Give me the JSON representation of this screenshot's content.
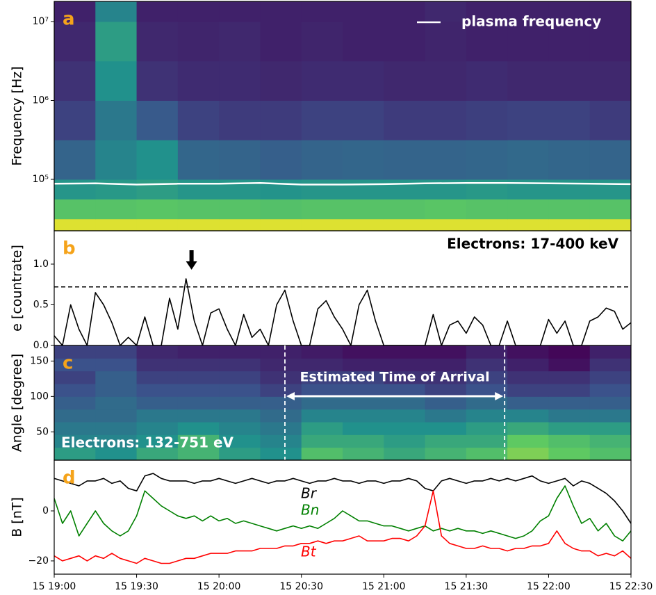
{
  "chart_data": [
    {
      "type": "heatmap",
      "panel_label": "a",
      "ylabel": "Frequency [Hz]",
      "ylog": true,
      "colormap": "viridis",
      "xlim": [
        "15 19:00",
        "15 22:30"
      ],
      "ylim": [
        22300,
        18000000
      ],
      "yticks": [
        {
          "value": 100000,
          "label": "10⁵"
        },
        {
          "value": 1000000,
          "label": "10⁶"
        },
        {
          "value": 10000000,
          "label": "10⁷"
        }
      ],
      "xbins": [
        "15 19:00",
        "15 19:15",
        "15 19:30",
        "15 19:45",
        "15 20:00",
        "15 20:15",
        "15 20:30",
        "15 20:45",
        "15 21:00",
        "15 21:15",
        "15 21:30",
        "15 21:45",
        "15 22:00",
        "15 22:15",
        "15 22:30"
      ],
      "ybins": [
        22300,
        31600,
        56200,
        100000,
        316000,
        1000000,
        3160000,
        10000000,
        18000000
      ],
      "values": [
        [
          0.95,
          0.95,
          0.95,
          0.95,
          0.95,
          0.95,
          0.95,
          0.95,
          0.95,
          0.95,
          0.95,
          0.95,
          0.95,
          0.95
        ],
        [
          0.72,
          0.72,
          0.73,
          0.72,
          0.72,
          0.71,
          0.72,
          0.72,
          0.72,
          0.73,
          0.72,
          0.72,
          0.72,
          0.72
        ],
        [
          0.52,
          0.53,
          0.55,
          0.52,
          0.52,
          0.51,
          0.52,
          0.52,
          0.52,
          0.52,
          0.53,
          0.52,
          0.52,
          0.52
        ],
        [
          0.32,
          0.45,
          0.5,
          0.33,
          0.32,
          0.3,
          0.32,
          0.33,
          0.32,
          0.32,
          0.33,
          0.34,
          0.33,
          0.32
        ],
        [
          0.2,
          0.4,
          0.28,
          0.2,
          0.18,
          0.18,
          0.2,
          0.2,
          0.18,
          0.18,
          0.19,
          0.2,
          0.2,
          0.18
        ],
        [
          0.15,
          0.5,
          0.15,
          0.13,
          0.13,
          0.12,
          0.13,
          0.13,
          0.12,
          0.12,
          0.13,
          0.12,
          0.12,
          0.12
        ],
        [
          0.12,
          0.55,
          0.12,
          0.11,
          0.12,
          0.1,
          0.11,
          0.1,
          0.1,
          0.11,
          0.1,
          0.1,
          0.1,
          0.1
        ],
        [
          0.1,
          0.45,
          0.1,
          0.1,
          0.1,
          0.1,
          0.1,
          0.1,
          0.1,
          0.12,
          0.1,
          0.1,
          0.1,
          0.1
        ]
      ],
      "x": [
        "15 19:00",
        "15 19:15",
        "15 19:30",
        "15 19:45",
        "15 20:00",
        "15 20:15",
        "15 20:30",
        "15 20:45",
        "15 21:00",
        "15 21:15",
        "15 21:30",
        "15 21:45",
        "15 22:00",
        "15 22:15",
        "15 22:30"
      ],
      "series": [
        {
          "name": "plasma frequency",
          "color": "#ffffff",
          "values": [
            88000,
            89000,
            86000,
            88000,
            88000,
            90000,
            86000,
            86000,
            87000,
            89000,
            90000,
            90000,
            89000,
            88000,
            87000
          ]
        }
      ]
    },
    {
      "type": "line",
      "panel_label": "b",
      "ylabel": "e [countrate]",
      "annotation": "Electrons: 17-400 keV",
      "threshold": 0.72,
      "arrow_x": "15 19:50",
      "xlim": [
        "15 19:00",
        "15 22:30"
      ],
      "ylim": [
        0,
        1.41
      ],
      "yticks": [
        {
          "value": 0,
          "label": "0.0"
        },
        0.5,
        {
          "value": 1,
          "label": "1.0"
        }
      ],
      "x": [
        "15 19:00",
        "15 19:03",
        "15 19:06",
        "15 19:09",
        "15 19:12",
        "15 19:15",
        "15 19:18",
        "15 19:21",
        "15 19:24",
        "15 19:27",
        "15 19:30",
        "15 19:33",
        "15 19:36",
        "15 19:39",
        "15 19:42",
        "15 19:45",
        "15 19:48",
        "15 19:51",
        "15 19:54",
        "15 19:57",
        "15 20:00",
        "15 20:03",
        "15 20:06",
        "15 20:09",
        "15 20:12",
        "15 20:15",
        "15 20:18",
        "15 20:21",
        "15 20:24",
        "15 20:27",
        "15 20:30",
        "15 20:33",
        "15 20:36",
        "15 20:39",
        "15 20:42",
        "15 20:45",
        "15 20:48",
        "15 20:51",
        "15 20:54",
        "15 20:57",
        "15 21:00",
        "15 21:03",
        "15 21:06",
        "15 21:09",
        "15 21:12",
        "15 21:15",
        "15 21:18",
        "15 21:21",
        "15 21:24",
        "15 21:27",
        "15 21:30",
        "15 21:33",
        "15 21:36",
        "15 21:39",
        "15 21:42",
        "15 21:45",
        "15 21:48",
        "15 21:51",
        "15 21:54",
        "15 21:57",
        "15 22:00",
        "15 22:03",
        "15 22:06",
        "15 22:09",
        "15 22:12",
        "15 22:15",
        "15 22:18",
        "15 22:21",
        "15 22:24",
        "15 22:27",
        "15 22:30"
      ],
      "series": [
        {
          "color": "#000000",
          "values": [
            0.12,
            0,
            0.5,
            0.2,
            0,
            0.65,
            0.5,
            0.28,
            0,
            0.1,
            0,
            0.35,
            0,
            0,
            0.58,
            0.2,
            0.82,
            0.3,
            0,
            0.4,
            0.45,
            0.2,
            0,
            0.38,
            0.1,
            0.2,
            0,
            0.5,
            0.68,
            0.3,
            0,
            0,
            0.45,
            0.55,
            0.35,
            0.2,
            0,
            0.5,
            0.68,
            0.3,
            0,
            0,
            0,
            0,
            0,
            0,
            0.38,
            0,
            0.25,
            0.3,
            0.15,
            0.35,
            0.25,
            0,
            0,
            0.3,
            0,
            0,
            0,
            0,
            0.32,
            0.15,
            0.3,
            0,
            0,
            0.3,
            0.35,
            0.46,
            0.42,
            0.2,
            0.28
          ]
        }
      ]
    },
    {
      "type": "heatmap",
      "panel_label": "c",
      "ylabel": "Angle [degree]",
      "colormap": "viridis",
      "annotation": "Electrons: 132-751 eV",
      "eta_label": "Estimated Time of Arrival",
      "eta": [
        "15 20:24",
        "15 21:44"
      ],
      "xlim": [
        "15 19:00",
        "15 22:30"
      ],
      "ylim": [
        10,
        172
      ],
      "yticks": [
        50,
        100,
        150
      ],
      "xbins": [
        "15 19:00",
        "15 19:15",
        "15 19:30",
        "15 19:45",
        "15 20:00",
        "15 20:15",
        "15 20:30",
        "15 20:45",
        "15 21:00",
        "15 21:15",
        "15 21:30",
        "15 21:45",
        "15 22:00",
        "15 22:15",
        "15 22:30"
      ],
      "ybins": [
        10,
        28,
        46,
        64,
        82,
        100,
        118,
        136,
        154,
        172
      ],
      "values": [
        [
          0.55,
          0.5,
          0.6,
          0.65,
          0.55,
          0.5,
          0.7,
          0.65,
          0.6,
          0.65,
          0.7,
          0.8,
          0.75,
          0.7
        ],
        [
          0.45,
          0.45,
          0.5,
          0.65,
          0.5,
          0.45,
          0.6,
          0.6,
          0.55,
          0.6,
          0.6,
          0.75,
          0.7,
          0.65
        ],
        [
          0.4,
          0.4,
          0.45,
          0.5,
          0.45,
          0.4,
          0.55,
          0.5,
          0.5,
          0.5,
          0.55,
          0.6,
          0.55,
          0.55
        ],
        [
          0.35,
          0.35,
          0.4,
          0.4,
          0.4,
          0.35,
          0.45,
          0.45,
          0.45,
          0.4,
          0.45,
          0.45,
          0.4,
          0.4
        ],
        [
          0.3,
          0.35,
          0.3,
          0.3,
          0.3,
          0.3,
          0.35,
          0.35,
          0.35,
          0.3,
          0.35,
          0.3,
          0.3,
          0.3
        ],
        [
          0.25,
          0.3,
          0.25,
          0.25,
          0.25,
          0.2,
          0.25,
          0.25,
          0.25,
          0.2,
          0.25,
          0.2,
          0.2,
          0.25
        ],
        [
          0.2,
          0.3,
          0.2,
          0.2,
          0.2,
          0.15,
          0.2,
          0.2,
          0.15,
          0.15,
          0.2,
          0.15,
          0.15,
          0.2
        ],
        [
          0.25,
          0.25,
          0.15,
          0.15,
          0.15,
          0.12,
          0.12,
          0.1,
          0.1,
          0.1,
          0.15,
          0.1,
          0.05,
          0.15
        ],
        [
          0.2,
          0.2,
          0.12,
          0.1,
          0.1,
          0.1,
          0.08,
          0.05,
          0.05,
          0.05,
          0.1,
          0.05,
          0.02,
          0.1
        ]
      ]
    },
    {
      "type": "line",
      "panel_label": "d",
      "ylabel": "B [nT]",
      "xlim": [
        "15 19:00",
        "15 22:30"
      ],
      "ylim": [
        -25.3,
        20.3
      ],
      "yticks": [
        {
          "value": -20,
          "label": "−20"
        },
        0
      ],
      "xticks": [
        "15 19:00",
        "15 19:30",
        "15 20:00",
        "15 20:30",
        "15 21:00",
        "15 21:30",
        "15 22:00",
        "15 22:30"
      ],
      "x": [
        "15 19:00",
        "15 19:03",
        "15 19:06",
        "15 19:09",
        "15 19:12",
        "15 19:15",
        "15 19:18",
        "15 19:21",
        "15 19:24",
        "15 19:27",
        "15 19:30",
        "15 19:33",
        "15 19:36",
        "15 19:39",
        "15 19:42",
        "15 19:45",
        "15 19:48",
        "15 19:51",
        "15 19:54",
        "15 19:57",
        "15 20:00",
        "15 20:03",
        "15 20:06",
        "15 20:09",
        "15 20:12",
        "15 20:15",
        "15 20:18",
        "15 20:21",
        "15 20:24",
        "15 20:27",
        "15 20:30",
        "15 20:33",
        "15 20:36",
        "15 20:39",
        "15 20:42",
        "15 20:45",
        "15 20:48",
        "15 20:51",
        "15 20:54",
        "15 20:57",
        "15 21:00",
        "15 21:03",
        "15 21:06",
        "15 21:09",
        "15 21:12",
        "15 21:15",
        "15 21:18",
        "15 21:21",
        "15 21:24",
        "15 21:27",
        "15 21:30",
        "15 21:33",
        "15 21:36",
        "15 21:39",
        "15 21:42",
        "15 21:45",
        "15 21:48",
        "15 21:51",
        "15 21:54",
        "15 21:57",
        "15 22:00",
        "15 22:03",
        "15 22:06",
        "15 22:09",
        "15 22:12",
        "15 22:15",
        "15 22:18",
        "15 22:21",
        "15 22:24",
        "15 22:27",
        "15 22:30"
      ],
      "series": [
        {
          "name": "Br",
          "color": "#000000",
          "values": [
            13,
            12,
            11,
            10,
            12,
            12,
            13,
            11,
            12,
            9,
            8,
            14,
            15,
            13,
            12,
            12,
            12,
            11,
            12,
            12,
            13,
            12,
            11,
            12,
            13,
            12,
            11,
            12,
            12,
            13,
            12,
            11,
            12,
            12,
            13,
            12,
            12,
            11,
            12,
            12,
            11,
            12,
            12,
            13,
            12,
            9,
            8,
            12,
            13,
            12,
            11,
            12,
            12,
            13,
            12,
            13,
            12,
            13,
            14,
            12,
            11,
            12,
            13,
            10,
            12,
            11,
            9,
            7,
            4,
            0,
            -5
          ]
        },
        {
          "name": "Bn",
          "color": "#008000",
          "values": [
            5,
            -5,
            0,
            -10,
            -5,
            0,
            -5,
            -8,
            -10,
            -8,
            -2,
            8,
            5,
            2,
            0,
            -2,
            -3,
            -2,
            -4,
            -2,
            -4,
            -3,
            -5,
            -4,
            -5,
            -6,
            -7,
            -8,
            -7,
            -6,
            -7,
            -6,
            -7,
            -5,
            -3,
            0,
            -2,
            -4,
            -4,
            -5,
            -6,
            -6,
            -7,
            -8,
            -7,
            -6,
            -8,
            -7,
            -8,
            -7,
            -8,
            -8,
            -9,
            -8,
            -9,
            -10,
            -11,
            -10,
            -8,
            -4,
            -2,
            5,
            10,
            2,
            -5,
            -3,
            -8,
            -5,
            -10,
            -12,
            -8
          ]
        },
        {
          "name": "Bt",
          "color": "#ff0000",
          "values": [
            -18,
            -20,
            -19,
            -18,
            -20,
            -18,
            -19,
            -17,
            -19,
            -20,
            -21,
            -19,
            -20,
            -21,
            -21,
            -20,
            -19,
            -19,
            -18,
            -17,
            -17,
            -17,
            -16,
            -16,
            -16,
            -15,
            -15,
            -15,
            -14,
            -14,
            -13,
            -13,
            -12,
            -13,
            -12,
            -12,
            -11,
            -10,
            -12,
            -12,
            -12,
            -11,
            -11,
            -12,
            -10,
            -6,
            8,
            -10,
            -13,
            -14,
            -15,
            -15,
            -14,
            -15,
            -15,
            -16,
            -15,
            -15,
            -14,
            -14,
            -13,
            -8,
            -13,
            -15,
            -16,
            -16,
            -18,
            -17,
            -18,
            -16,
            -19
          ]
        }
      ]
    }
  ]
}
